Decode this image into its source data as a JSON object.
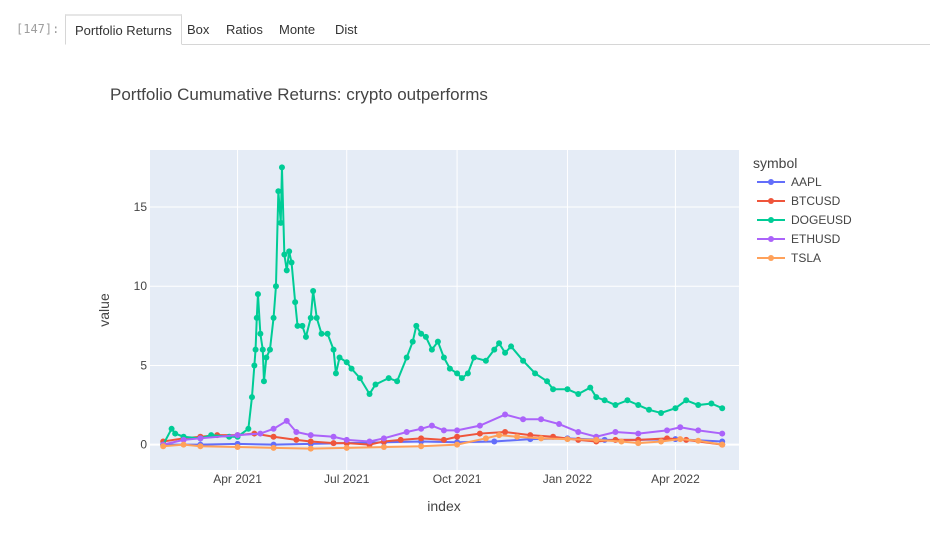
{
  "cell": {
    "prompt": "[147]:"
  },
  "tabs": [
    {
      "label": "Portfolio Returns",
      "active": true
    },
    {
      "label": "Box",
      "active": false
    },
    {
      "label": "Ratios",
      "active": false
    },
    {
      "label": "Monte",
      "active": false
    },
    {
      "label": "Dist",
      "active": false
    }
  ],
  "chart_data": {
    "type": "line",
    "title": "Portfolio Cumumative Returns: crypto outperforms",
    "xlabel": "index",
    "ylabel": "value",
    "xlim": [
      "2021-01-18",
      "2022-05-24"
    ],
    "ylim": [
      -1.6,
      18.6
    ],
    "x_ticks": [
      {
        "date": "2021-04-01",
        "label": "Apr 2021"
      },
      {
        "date": "2021-07-01",
        "label": "Jul 2021"
      },
      {
        "date": "2021-10-01",
        "label": "Oct 2021"
      },
      {
        "date": "2022-01-01",
        "label": "Jan 2022"
      },
      {
        "date": "2022-04-01",
        "label": "Apr 2022"
      }
    ],
    "y_ticks": [
      0,
      5,
      10,
      15
    ],
    "grid": true,
    "legend": {
      "title": "symbol",
      "position": "right"
    },
    "series": [
      {
        "name": "AAPL",
        "color": "#636efa",
        "points": [
          [
            "2021-01-29",
            0.0
          ],
          [
            "2021-03-01",
            0.0
          ],
          [
            "2021-04-01",
            0.05
          ],
          [
            "2021-05-01",
            0.0
          ],
          [
            "2021-06-01",
            0.05
          ],
          [
            "2021-07-01",
            0.1
          ],
          [
            "2021-08-01",
            0.15
          ],
          [
            "2021-09-01",
            0.2
          ],
          [
            "2021-10-01",
            0.15
          ],
          [
            "2021-11-01",
            0.2
          ],
          [
            "2021-12-01",
            0.35
          ],
          [
            "2022-01-01",
            0.4
          ],
          [
            "2022-02-01",
            0.3
          ],
          [
            "2022-03-01",
            0.3
          ],
          [
            "2022-04-01",
            0.35
          ],
          [
            "2022-05-10",
            0.2
          ]
        ]
      },
      {
        "name": "BTCUSD",
        "color": "#ef553b",
        "points": [
          [
            "2021-01-29",
            0.2
          ],
          [
            "2021-02-15",
            0.4
          ],
          [
            "2021-03-01",
            0.5
          ],
          [
            "2021-03-15",
            0.6
          ],
          [
            "2021-04-01",
            0.6
          ],
          [
            "2021-04-15",
            0.7
          ],
          [
            "2021-05-01",
            0.5
          ],
          [
            "2021-05-20",
            0.3
          ],
          [
            "2021-06-01",
            0.2
          ],
          [
            "2021-06-20",
            0.1
          ],
          [
            "2021-07-01",
            0.1
          ],
          [
            "2021-07-20",
            0.0
          ],
          [
            "2021-08-01",
            0.2
          ],
          [
            "2021-08-15",
            0.3
          ],
          [
            "2021-09-01",
            0.4
          ],
          [
            "2021-09-20",
            0.3
          ],
          [
            "2021-10-01",
            0.5
          ],
          [
            "2021-10-20",
            0.7
          ],
          [
            "2021-11-10",
            0.8
          ],
          [
            "2021-12-01",
            0.6
          ],
          [
            "2021-12-20",
            0.5
          ],
          [
            "2022-01-10",
            0.3
          ],
          [
            "2022-01-25",
            0.2
          ],
          [
            "2022-02-10",
            0.3
          ],
          [
            "2022-03-01",
            0.3
          ],
          [
            "2022-03-25",
            0.4
          ],
          [
            "2022-04-10",
            0.3
          ],
          [
            "2022-05-10",
            0.0
          ]
        ]
      },
      {
        "name": "DOGEUSD",
        "color": "#00cc96",
        "points": [
          [
            "2021-01-29",
            0.0
          ],
          [
            "2021-02-05",
            1.0
          ],
          [
            "2021-02-08",
            0.7
          ],
          [
            "2021-02-15",
            0.5
          ],
          [
            "2021-03-01",
            0.4
          ],
          [
            "2021-03-10",
            0.6
          ],
          [
            "2021-03-25",
            0.5
          ],
          [
            "2021-04-01",
            0.5
          ],
          [
            "2021-04-10",
            1.0
          ],
          [
            "2021-04-13",
            3.0
          ],
          [
            "2021-04-15",
            5.0
          ],
          [
            "2021-04-16",
            6.0
          ],
          [
            "2021-04-17",
            8.0
          ],
          [
            "2021-04-18",
            9.5
          ],
          [
            "2021-04-20",
            7.0
          ],
          [
            "2021-04-22",
            6.0
          ],
          [
            "2021-04-23",
            4.0
          ],
          [
            "2021-04-25",
            5.5
          ],
          [
            "2021-04-28",
            6.0
          ],
          [
            "2021-05-01",
            8.0
          ],
          [
            "2021-05-03",
            10.0
          ],
          [
            "2021-05-05",
            16.0
          ],
          [
            "2021-05-07",
            14.0
          ],
          [
            "2021-05-08",
            17.5
          ],
          [
            "2021-05-10",
            12.0
          ],
          [
            "2021-05-12",
            11.0
          ],
          [
            "2021-05-14",
            12.2
          ],
          [
            "2021-05-16",
            11.5
          ],
          [
            "2021-05-19",
            9.0
          ],
          [
            "2021-05-21",
            7.5
          ],
          [
            "2021-05-25",
            7.5
          ],
          [
            "2021-05-28",
            6.8
          ],
          [
            "2021-06-01",
            8.0
          ],
          [
            "2021-06-03",
            9.7
          ],
          [
            "2021-06-06",
            8.0
          ],
          [
            "2021-06-10",
            7.0
          ],
          [
            "2021-06-15",
            7.0
          ],
          [
            "2021-06-20",
            6.0
          ],
          [
            "2021-06-22",
            4.5
          ],
          [
            "2021-06-25",
            5.5
          ],
          [
            "2021-07-01",
            5.2
          ],
          [
            "2021-07-05",
            4.8
          ],
          [
            "2021-07-12",
            4.2
          ],
          [
            "2021-07-20",
            3.2
          ],
          [
            "2021-07-25",
            3.8
          ],
          [
            "2021-08-05",
            4.2
          ],
          [
            "2021-08-12",
            4.0
          ],
          [
            "2021-08-20",
            5.5
          ],
          [
            "2021-08-25",
            6.5
          ],
          [
            "2021-08-28",
            7.5
          ],
          [
            "2021-09-01",
            7.0
          ],
          [
            "2021-09-05",
            6.8
          ],
          [
            "2021-09-10",
            6.0
          ],
          [
            "2021-09-15",
            6.5
          ],
          [
            "2021-09-20",
            5.5
          ],
          [
            "2021-09-25",
            4.8
          ],
          [
            "2021-10-01",
            4.5
          ],
          [
            "2021-10-05",
            4.2
          ],
          [
            "2021-10-10",
            4.5
          ],
          [
            "2021-10-15",
            5.5
          ],
          [
            "2021-10-25",
            5.3
          ],
          [
            "2021-11-01",
            6.0
          ],
          [
            "2021-11-05",
            6.4
          ],
          [
            "2021-11-10",
            5.8
          ],
          [
            "2021-11-15",
            6.2
          ],
          [
            "2021-11-25",
            5.3
          ],
          [
            "2021-12-05",
            4.5
          ],
          [
            "2021-12-15",
            4.0
          ],
          [
            "2021-12-20",
            3.5
          ],
          [
            "2022-01-01",
            3.5
          ],
          [
            "2022-01-10",
            3.2
          ],
          [
            "2022-01-20",
            3.6
          ],
          [
            "2022-01-25",
            3.0
          ],
          [
            "2022-02-01",
            2.8
          ],
          [
            "2022-02-10",
            2.5
          ],
          [
            "2022-02-20",
            2.8
          ],
          [
            "2022-03-01",
            2.5
          ],
          [
            "2022-03-10",
            2.2
          ],
          [
            "2022-03-20",
            2.0
          ],
          [
            "2022-04-01",
            2.3
          ],
          [
            "2022-04-10",
            2.8
          ],
          [
            "2022-04-20",
            2.5
          ],
          [
            "2022-05-01",
            2.6
          ],
          [
            "2022-05-10",
            2.3
          ]
        ]
      },
      {
        "name": "ETHUSD",
        "color": "#ab63fa",
        "points": [
          [
            "2021-01-29",
            0.0
          ],
          [
            "2021-02-15",
            0.3
          ],
          [
            "2021-03-01",
            0.4
          ],
          [
            "2021-04-01",
            0.6
          ],
          [
            "2021-04-20",
            0.7
          ],
          [
            "2021-05-01",
            1.0
          ],
          [
            "2021-05-12",
            1.5
          ],
          [
            "2021-05-20",
            0.8
          ],
          [
            "2021-06-01",
            0.6
          ],
          [
            "2021-06-20",
            0.5
          ],
          [
            "2021-07-01",
            0.3
          ],
          [
            "2021-07-20",
            0.2
          ],
          [
            "2021-08-01",
            0.4
          ],
          [
            "2021-08-20",
            0.8
          ],
          [
            "2021-09-01",
            1.0
          ],
          [
            "2021-09-10",
            1.2
          ],
          [
            "2021-09-20",
            0.9
          ],
          [
            "2021-10-01",
            0.9
          ],
          [
            "2021-10-20",
            1.2
          ],
          [
            "2021-11-10",
            1.9
          ],
          [
            "2021-11-25",
            1.6
          ],
          [
            "2021-12-10",
            1.6
          ],
          [
            "2021-12-25",
            1.3
          ],
          [
            "2022-01-10",
            0.8
          ],
          [
            "2022-01-25",
            0.5
          ],
          [
            "2022-02-10",
            0.8
          ],
          [
            "2022-03-01",
            0.7
          ],
          [
            "2022-03-25",
            0.9
          ],
          [
            "2022-04-05",
            1.1
          ],
          [
            "2022-04-20",
            0.9
          ],
          [
            "2022-05-10",
            0.7
          ]
        ]
      },
      {
        "name": "TSLA",
        "color": "#ffa15a",
        "points": [
          [
            "2021-01-29",
            -0.1
          ],
          [
            "2021-02-15",
            0.0
          ],
          [
            "2021-03-01",
            -0.1
          ],
          [
            "2021-04-01",
            -0.15
          ],
          [
            "2021-05-01",
            -0.2
          ],
          [
            "2021-06-01",
            -0.25
          ],
          [
            "2021-07-01",
            -0.2
          ],
          [
            "2021-08-01",
            -0.15
          ],
          [
            "2021-09-01",
            -0.1
          ],
          [
            "2021-10-01",
            0.0
          ],
          [
            "2021-10-25",
            0.4
          ],
          [
            "2021-11-05",
            0.6
          ],
          [
            "2021-11-20",
            0.5
          ],
          [
            "2021-12-10",
            0.4
          ],
          [
            "2022-01-01",
            0.35
          ],
          [
            "2022-01-25",
            0.3
          ],
          [
            "2022-02-15",
            0.2
          ],
          [
            "2022-03-01",
            0.1
          ],
          [
            "2022-03-20",
            0.2
          ],
          [
            "2022-04-05",
            0.35
          ],
          [
            "2022-04-20",
            0.25
          ],
          [
            "2022-05-10",
            0.0
          ]
        ]
      }
    ]
  }
}
